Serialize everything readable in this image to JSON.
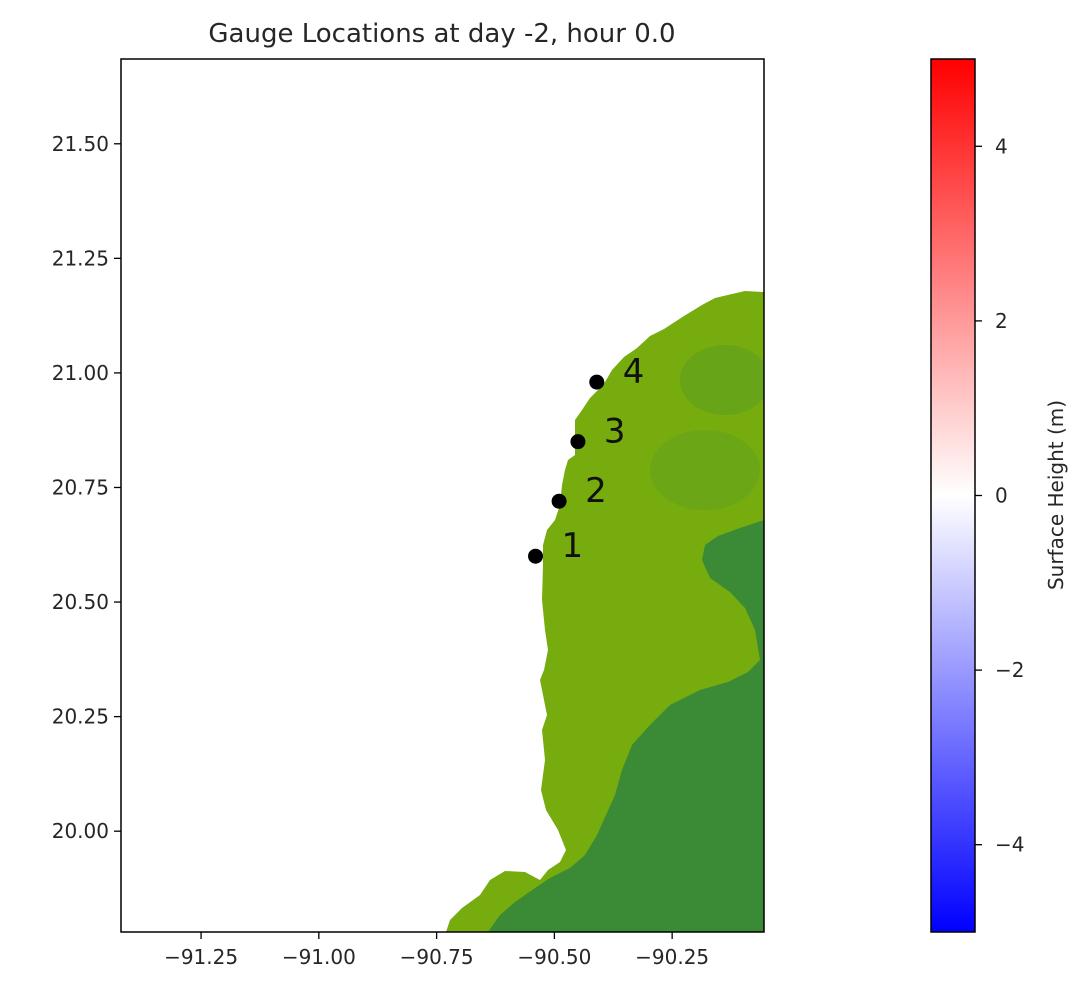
{
  "chart_data": [
    {
      "type": "map",
      "title": "Gauge Locations at day  -2, hour 0.0",
      "xlim": [
        -91.42,
        -90.055
      ],
      "ylim": [
        19.78,
        21.685
      ],
      "xticks": [
        -91.25,
        -91.0,
        -90.75,
        -90.5,
        -90.25
      ],
      "xtick_labels": [
        "−91.25",
        "−91.00",
        "−90.75",
        "−90.50",
        "−90.25"
      ],
      "yticks": [
        20.0,
        20.25,
        20.5,
        20.75,
        21.0,
        21.25,
        21.5
      ],
      "ytick_labels": [
        "20.00",
        "20.25",
        "20.50",
        "20.75",
        "21.00",
        "21.25",
        "21.50"
      ],
      "xlabel": "",
      "ylabel": "",
      "grid": false,
      "land_colors": {
        "coast": "#76ac0e",
        "inland": "#3a8a36"
      },
      "gauges": [
        {
          "label": "1",
          "x": -90.54,
          "y": 20.6
        },
        {
          "label": "2",
          "x": -90.49,
          "y": 20.72
        },
        {
          "label": "3",
          "x": -90.45,
          "y": 20.85
        },
        {
          "label": "4",
          "x": -90.41,
          "y": 20.98
        }
      ]
    },
    {
      "type": "colorbar",
      "label": "Surface Height (m)",
      "range": [
        -5,
        5
      ],
      "colormap": [
        "#0000ff",
        "#ffffff",
        "#ff0000"
      ],
      "ticks": [
        -4,
        -2,
        0,
        2,
        4
      ],
      "tick_labels": [
        "−4",
        "−2",
        "0",
        "2",
        "4"
      ]
    }
  ]
}
